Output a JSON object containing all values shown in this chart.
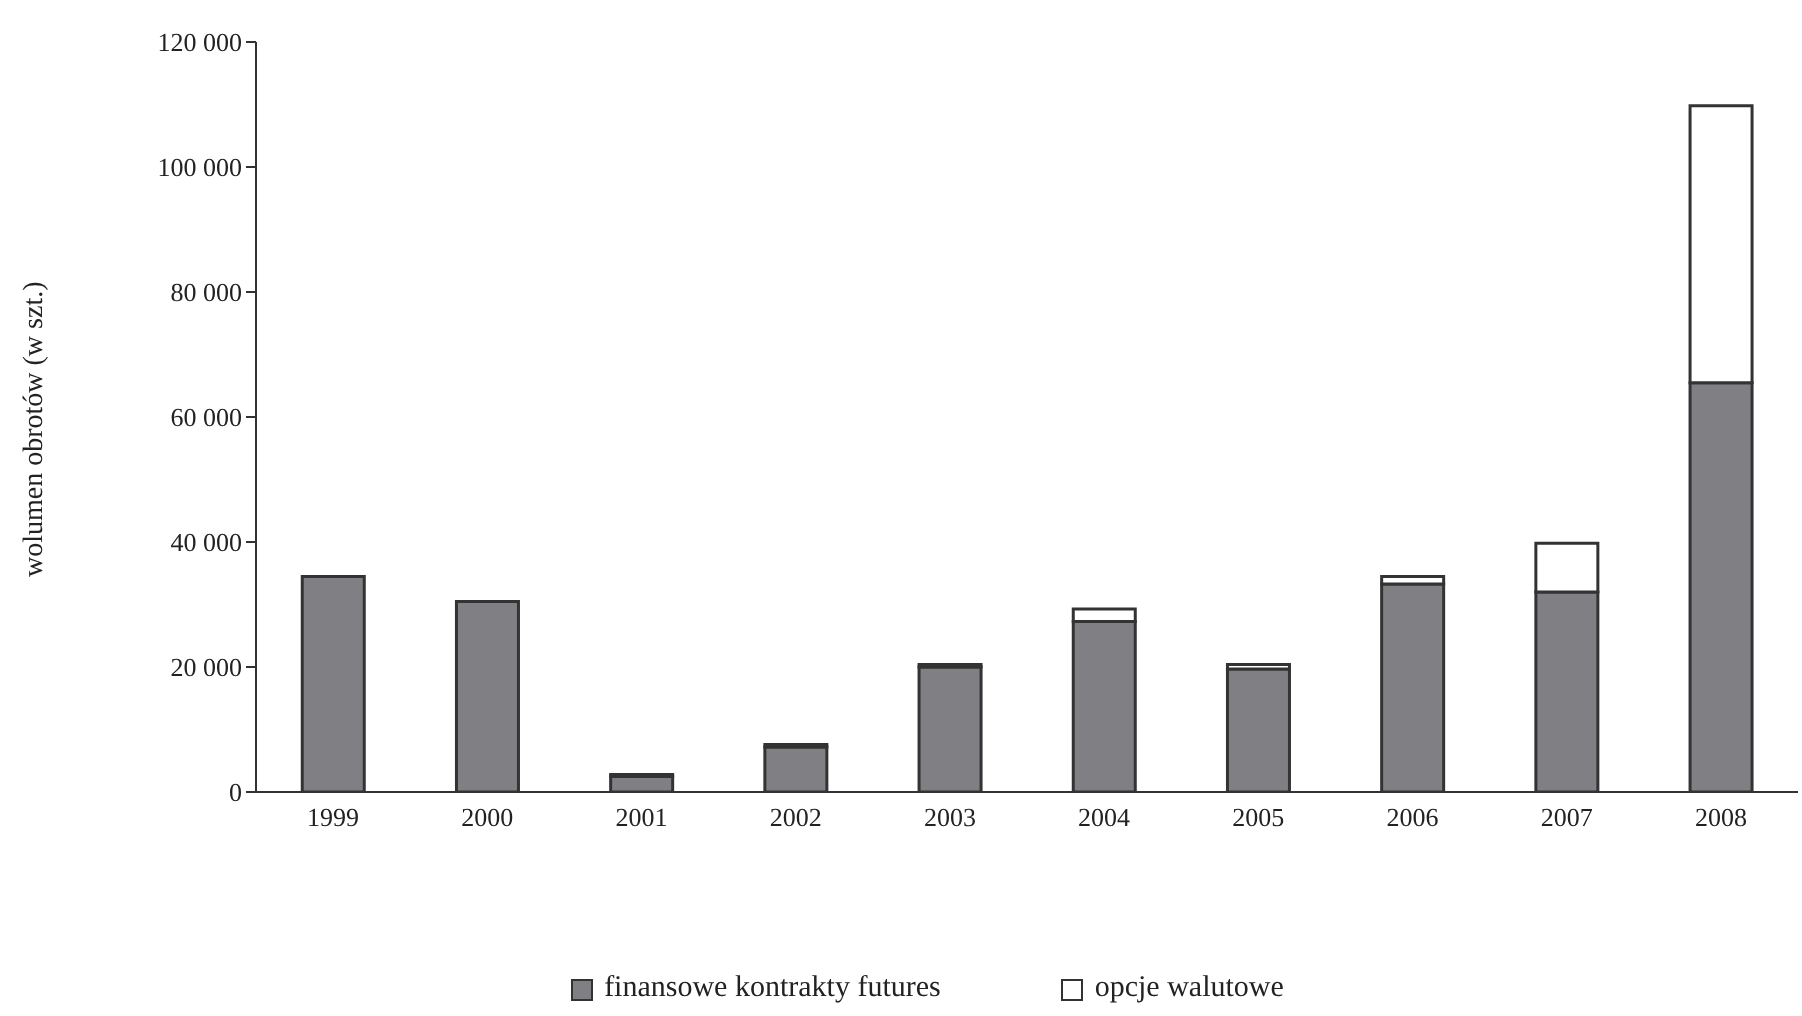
{
  "chart_data": {
    "type": "bar",
    "stacked": true,
    "ylabel": "wolumen obrotów (w szt.)",
    "categories": [
      "1999",
      "2000",
      "2001",
      "2002",
      "2003",
      "2004",
      "2005",
      "2006",
      "2007",
      "2008"
    ],
    "series": [
      {
        "name": "finansowe kontrakty futures",
        "color": "#808084",
        "values": [
          34500,
          30500,
          2500,
          7200,
          20000,
          27300,
          19700,
          33300,
          32000,
          65500
        ]
      },
      {
        "name": "opcje walutowe",
        "color": "#ffffff",
        "values": [
          0,
          0,
          300,
          400,
          400,
          2000,
          700,
          1200,
          7800,
          44300
        ]
      }
    ],
    "ylim": [
      0,
      120000
    ],
    "yticks": [
      {
        "value": 0,
        "label": "0"
      },
      {
        "value": 20000,
        "label": "20 000"
      },
      {
        "value": 40000,
        "label": "40 000"
      },
      {
        "value": 60000,
        "label": "60 000"
      },
      {
        "value": 80000,
        "label": "80 000"
      },
      {
        "value": 100000,
        "label": "100 000"
      },
      {
        "value": 120000,
        "label": "120 000"
      }
    ],
    "grid": false,
    "legend": "bottom"
  }
}
